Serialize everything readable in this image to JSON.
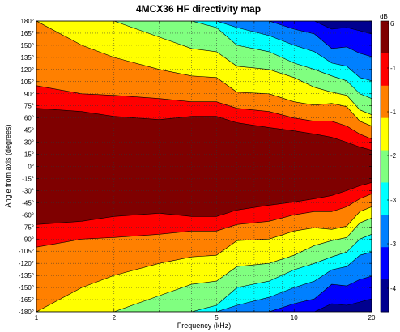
{
  "chart_data": {
    "type": "heatmap",
    "title": "4MCX36 HF directivity map",
    "xlabel": "Frequency (kHz)",
    "ylabel": "Angle from axis (degrees)",
    "x_scale": "log",
    "xlim": [
      1,
      20
    ],
    "ylim": [
      -180,
      180
    ],
    "x_ticks": [
      1,
      2,
      5,
      10,
      20
    ],
    "x_tick_labels": [
      "1",
      "2",
      "5",
      "10",
      "20"
    ],
    "y_ticks": [
      180,
      165,
      150,
      135,
      120,
      105,
      90,
      75,
      60,
      45,
      30,
      15,
      0,
      -15,
      -30,
      -45,
      -60,
      -75,
      -90,
      -105,
      -120,
      -135,
      -150,
      -165,
      -180
    ],
    "y_tick_labels": [
      "180°",
      "165°",
      "150°",
      "135°",
      "120°",
      "105°",
      "90°",
      "75°",
      "60°",
      "45°",
      "30°",
      "15°",
      "0°",
      "-15°",
      "-30°",
      "-45°",
      "-60°",
      "-75°",
      "-90°",
      "-105°",
      "-120°",
      "-135°",
      "-150°",
      "-165°",
      "-180°"
    ],
    "grid": true,
    "colorbar": {
      "unit": "dB",
      "range": [
        -45,
        6
      ],
      "tick_labels": [
        "6",
        "-1",
        "-1",
        "-2",
        "-3",
        "-3",
        "-4"
      ],
      "colors": [
        "#7f0000",
        "#ff0000",
        "#ff8000",
        "#ffff00",
        "#80ff80",
        "#00ffff",
        "#0080ff",
        "#0000ff",
        "#00008f"
      ]
    },
    "contour_levels_db": [
      -3,
      -6,
      -9,
      -12,
      -15,
      -20,
      -25,
      -30
    ],
    "frequencies_khz": [
      1,
      1.5,
      2,
      3,
      4,
      5,
      6,
      8,
      10,
      12,
      14,
      16,
      18,
      20
    ],
    "contour_half_angles_deg": [
      {
        "level_db": -3,
        "angles": [
          72,
          68,
          62,
          58,
          62,
          62,
          54,
          48,
          44,
          40,
          36,
          30,
          24,
          20
        ]
      },
      {
        "level_db": -6,
        "angles": [
          100,
          90,
          88,
          84,
          80,
          80,
          72,
          68,
          60,
          56,
          56,
          50,
          40,
          34
        ]
      },
      {
        "level_db": -9,
        "angles": [
          180,
          150,
          135,
          120,
          112,
          110,
          92,
          90,
          80,
          76,
          78,
          74,
          56,
          50
        ]
      },
      {
        "level_db": -12,
        "angles": [
          180,
          180,
          180,
          160,
          146,
          142,
          124,
          120,
          110,
          98,
          92,
          88,
          70,
          64
        ]
      },
      {
        "level_db": -15,
        "angles": [
          180,
          180,
          180,
          180,
          180,
          172,
          150,
          142,
          128,
          120,
          112,
          106,
          90,
          84
        ]
      },
      {
        "level_db": -20,
        "angles": [
          180,
          180,
          180,
          180,
          180,
          180,
          172,
          162,
          150,
          142,
          128,
          124,
          110,
          106
        ]
      },
      {
        "level_db": -25,
        "angles": [
          180,
          180,
          180,
          180,
          180,
          180,
          180,
          180,
          170,
          164,
          146,
          148,
          140,
          136
        ]
      },
      {
        "level_db": -30,
        "angles": [
          180,
          180,
          180,
          180,
          180,
          180,
          180,
          180,
          180,
          180,
          170,
          172,
          168,
          164
        ]
      }
    ]
  }
}
